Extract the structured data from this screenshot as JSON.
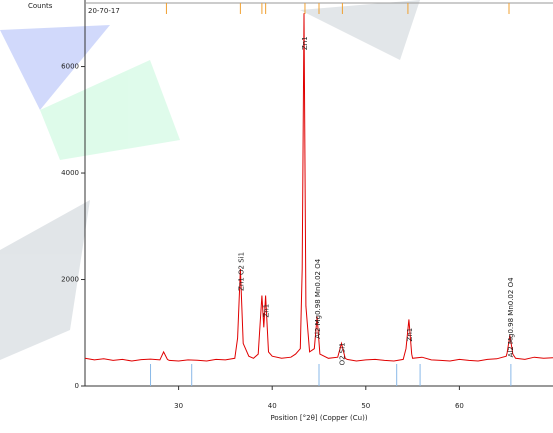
{
  "chart_data": {
    "type": "line",
    "title": "20-70-17",
    "y_label": "Counts",
    "x_label": "Position [°2θ] (Copper (Cu))",
    "x": [
      20,
      21,
      22,
      23,
      24,
      25,
      26,
      27,
      28,
      28.4,
      28.8,
      29,
      30,
      31,
      32,
      33,
      34,
      35,
      36,
      36.3,
      36.6,
      36.9,
      37.5,
      38,
      38.5,
      38.9,
      39.1,
      39.3,
      39.6,
      40,
      41,
      42,
      42.5,
      43,
      43.2,
      43.4,
      43.6,
      44,
      44.5,
      44.8,
      45.1,
      46,
      47,
      47.4,
      47.8,
      48,
      49,
      50,
      51,
      52,
      53,
      54,
      54.3,
      54.6,
      54.9,
      55,
      56,
      57,
      58,
      59,
      60,
      61,
      62,
      63,
      64,
      65,
      65.1,
      65.4,
      65.7,
      66,
      67,
      68,
      69,
      70
    ],
    "series": [
      {
        "name": "20-70-17",
        "color": "#e00000",
        "values": [
          520,
          490,
          510,
          480,
          500,
          470,
          495,
          505,
          490,
          640,
          500,
          480,
          470,
          490,
          485,
          470,
          500,
          490,
          520,
          900,
          2200,
          800,
          560,
          520,
          600,
          1700,
          1100,
          1700,
          640,
          560,
          520,
          540,
          600,
          700,
          2200,
          7000,
          1500,
          640,
          700,
          1300,
          600,
          520,
          540,
          800,
          520,
          500,
          470,
          490,
          500,
          480,
          470,
          500,
          700,
          1250,
          600,
          520,
          540,
          490,
          480,
          470,
          500,
          480,
          470,
          500,
          510,
          560,
          620,
          950,
          600,
          520,
          500,
          540,
          520,
          530
        ]
      }
    ],
    "xlim": [
      20,
      70
    ],
    "ylim": [
      0,
      7250
    ],
    "xticks": [
      30,
      40,
      50,
      60
    ],
    "yticks": [
      0,
      2000,
      4000,
      6000
    ],
    "top_markers": [
      28.7,
      36.6,
      38.9,
      39.3,
      43.5,
      45,
      47.5,
      54.5,
      65.3
    ],
    "bottom_markers": [
      27,
      31.4,
      45,
      53.3,
      55.8,
      65.5
    ],
    "annotations": [
      {
        "text": "Zn1 O2 Si1",
        "x": 36.6
      },
      {
        "text": "Zn1",
        "x": 39.3
      },
      {
        "text": "Zn1",
        "x": 43.4
      },
      {
        "text": "Al2 Mg0.98 Mn0.02 O4",
        "x": 44.8
      },
      {
        "text": "O2 Si1",
        "x": 47.4
      },
      {
        "text": "Zn1",
        "x": 54.6
      },
      {
        "text": "Al2 Mg0.98 Mn0.02 O4",
        "x": 65.4
      }
    ]
  }
}
